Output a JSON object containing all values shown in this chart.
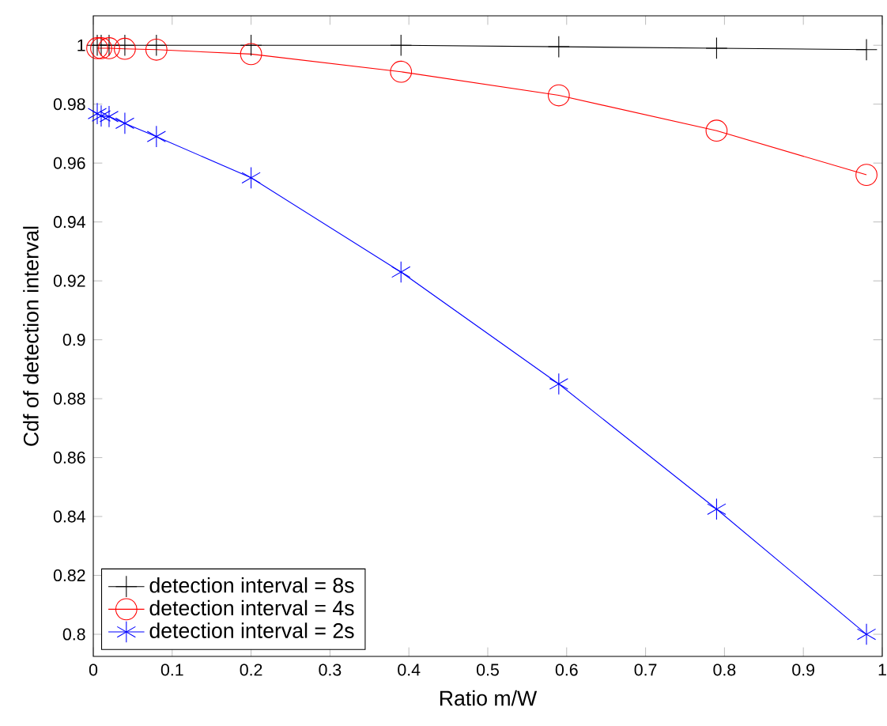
{
  "chart_data": {
    "type": "line",
    "xlabel": "Ratio m/W",
    "ylabel": "Cdf of detection interval",
    "x": [
      0.005,
      0.01,
      0.02,
      0.04,
      0.08,
      0.2,
      0.39,
      0.59,
      0.79,
      0.98
    ],
    "series": [
      {
        "name": "detection interval = 8s",
        "color": "#000000",
        "marker": "cross",
        "values": [
          1.0,
          1.0,
          1.0,
          1.0,
          1.0,
          1.0,
          1.0,
          0.9995,
          0.999,
          0.9985
        ]
      },
      {
        "name": "detection interval = 4s",
        "color": "#ff0000",
        "marker": "circle",
        "values": [
          0.999,
          0.999,
          0.999,
          0.9988,
          0.9985,
          0.997,
          0.991,
          0.983,
          0.971,
          0.956
        ]
      },
      {
        "name": "detection interval = 2s",
        "color": "#0000ff",
        "marker": "cross",
        "values": [
          0.9768,
          0.976,
          0.9758,
          0.9735,
          0.969,
          0.955,
          0.923,
          0.885,
          0.8425,
          0.8
        ]
      }
    ],
    "xlim": [
      0,
      1
    ],
    "ylim": [
      0.7925,
      1.01
    ],
    "xticks": [
      0,
      0.1,
      0.2,
      0.3,
      0.4,
      0.5,
      0.6,
      0.7,
      0.8,
      0.9,
      1
    ],
    "yticks": [
      0.8,
      0.82,
      0.84,
      0.86,
      0.88,
      0.9,
      0.92,
      0.94,
      0.96,
      0.98,
      1
    ],
    "legend": "bottom left",
    "grid": false
  }
}
